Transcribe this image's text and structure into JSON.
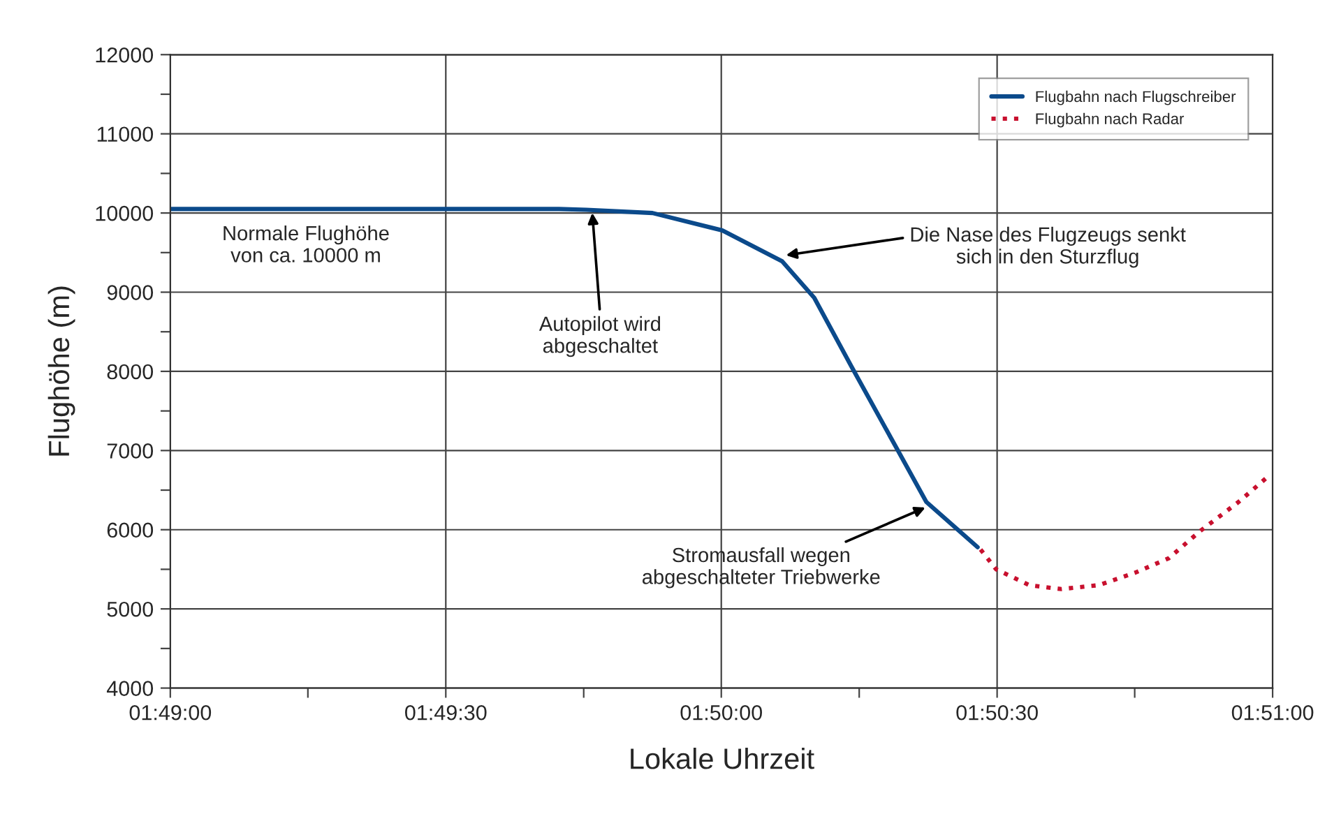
{
  "chart_data": {
    "type": "line",
    "xlabel": "Lokale Uhrzeit",
    "ylabel": "Flughöhe (m)",
    "xlim": [
      1.81667,
      1.85
    ],
    "ylim": [
      4000,
      12000
    ],
    "xticks": [
      {
        "value": 1.81667,
        "label": "01:49:00"
      },
      {
        "value": 1.82083,
        "label": null
      },
      {
        "value": 1.825,
        "label": "01:49:30"
      },
      {
        "value": 1.82917,
        "label": null
      },
      {
        "value": 1.83333,
        "label": "01:50:00"
      },
      {
        "value": 1.8375,
        "label": null
      },
      {
        "value": 1.84167,
        "label": "01:50:30"
      },
      {
        "value": 1.84583,
        "label": null
      },
      {
        "value": 1.85,
        "label": "01:51:00"
      }
    ],
    "yticks": [
      4000,
      {
        "value": 4500,
        "label": null
      },
      5000,
      {
        "value": 5500,
        "label": null
      },
      6000,
      {
        "value": 6500,
        "label": null
      },
      7000,
      {
        "value": 7500,
        "label": null
      },
      8000,
      {
        "value": 8500,
        "label": null
      },
      9000,
      {
        "value": 9500,
        "label": null
      },
      10000,
      {
        "value": 10500,
        "label": null
      },
      11000,
      {
        "value": 11500,
        "label": null
      },
      12000
    ],
    "grid": true,
    "legend": "top right",
    "series": [
      {
        "name": "Flugbahn nach Flugschreiber",
        "color": "#0b4a8b",
        "line_style": "solid",
        "x": [
          1.81667,
          1.82842,
          1.82925,
          1.83125,
          1.83336,
          1.83517,
          1.83614,
          1.83728,
          1.83867,
          1.83953,
          1.84108
        ],
        "values": [
          10050,
          10050,
          10040,
          10000,
          9780,
          9390,
          8930,
          8050,
          7000,
          6350,
          5780
        ]
      },
      {
        "name": "Flugbahn nach Radar",
        "color": "#c8102e",
        "line_style": "dotted",
        "x": [
          1.84117,
          1.84164,
          1.84264,
          1.84361,
          1.84475,
          1.84586,
          1.84686,
          1.84783,
          1.84897,
          1.84994
        ],
        "values": [
          5750,
          5500,
          5300,
          5250,
          5300,
          5460,
          5640,
          5990,
          6350,
          6700
        ]
      }
    ],
    "annotations": [
      "Normale Flughöhe\nvon ca. 10000 m",
      {
        "text": "Autopilot wird\nabgeschaltet",
        "x": 1.82942,
        "y": 10050
      },
      {
        "text": "Die Nase des Flugzeugs senkt\nsich in den Sturzflug",
        "x": 1.83517,
        "y": 9460
      },
      {
        "text": "Stromausfall wegen\nabgeschalteter Triebwerke",
        "x": 1.83961,
        "y": 6300
      }
    ]
  }
}
